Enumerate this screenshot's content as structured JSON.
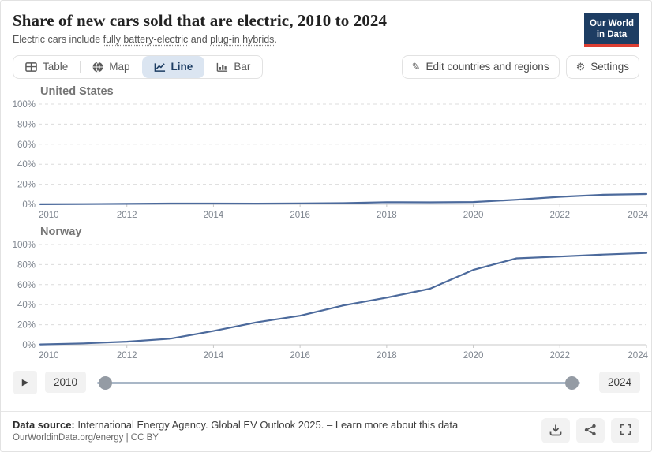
{
  "header": {
    "title": "Share of new cars sold that are electric, 2010 to 2024",
    "subtitle_prefix": "Electric cars include ",
    "subtitle_link1": "fully battery-electric",
    "subtitle_mid": " and ",
    "subtitle_link2": "plug-in hybrids",
    "subtitle_suffix": ".",
    "logo_line1": "Our World",
    "logo_line2": "in Data"
  },
  "toolbar": {
    "tabs": [
      {
        "label": "Table",
        "active": false
      },
      {
        "label": "Map",
        "active": false
      },
      {
        "label": "Line",
        "active": true
      },
      {
        "label": "Bar",
        "active": false
      }
    ],
    "edit_label": "Edit countries and regions",
    "settings_label": "Settings"
  },
  "timeline": {
    "start": "2010",
    "end": "2024",
    "play_icon": "▶"
  },
  "footer": {
    "source_label": "Data source:",
    "source_text": "International Energy Agency. Global EV Outlook 2025.",
    "dash": "–",
    "learn_more": "Learn more about this data",
    "license": "OurWorldinData.org/energy | CC BY"
  },
  "colors": {
    "line": "#4c6a9c",
    "grid": "#dcdcdc",
    "axis": "#c8c8c8",
    "tick_text": "#7d848e",
    "accent_tab_bg": "#dbe5f1",
    "accent_tab_text": "#1d3d63",
    "logo_navy": "#1d3d63",
    "logo_red": "#dc3e32"
  },
  "chart_data": [
    {
      "type": "line",
      "title": "United States",
      "x": [
        2010,
        2011,
        2012,
        2013,
        2014,
        2015,
        2016,
        2017,
        2018,
        2019,
        2020,
        2021,
        2022,
        2023,
        2024
      ],
      "series": [
        {
          "name": "United States",
          "color": "#4c6a9c",
          "values": [
            0.1,
            0.2,
            0.5,
            0.8,
            0.8,
            0.7,
            0.9,
            1.2,
            2.1,
            2.0,
            2.3,
            4.6,
            7.5,
            9.5,
            10.2
          ]
        }
      ],
      "xlabel": "",
      "ylabel": "",
      "ylim": [
        0,
        100
      ],
      "yticks": [
        "0%",
        "20%",
        "40%",
        "60%",
        "80%",
        "100%"
      ],
      "xticks": [
        2010,
        2012,
        2014,
        2016,
        2018,
        2020,
        2022,
        2024
      ],
      "grid": "dashed-horizontal",
      "legend": "none",
      "unit": "%"
    },
    {
      "type": "line",
      "title": "Norway",
      "x": [
        2010,
        2011,
        2012,
        2013,
        2014,
        2015,
        2016,
        2017,
        2018,
        2019,
        2020,
        2021,
        2022,
        2023,
        2024
      ],
      "series": [
        {
          "name": "Norway",
          "color": "#4c6a9c",
          "values": [
            0.3,
            1.3,
            3.1,
            6.1,
            13.7,
            22.4,
            29.0,
            39.2,
            47.0,
            55.9,
            74.7,
            86.2,
            88.0,
            90.0,
            91.6
          ]
        }
      ],
      "xlabel": "",
      "ylabel": "",
      "ylim": [
        0,
        100
      ],
      "yticks": [
        "0%",
        "20%",
        "40%",
        "60%",
        "80%",
        "100%"
      ],
      "xticks": [
        2010,
        2012,
        2014,
        2016,
        2018,
        2020,
        2022,
        2024
      ],
      "grid": "dashed-horizontal",
      "legend": "none",
      "unit": "%"
    }
  ]
}
